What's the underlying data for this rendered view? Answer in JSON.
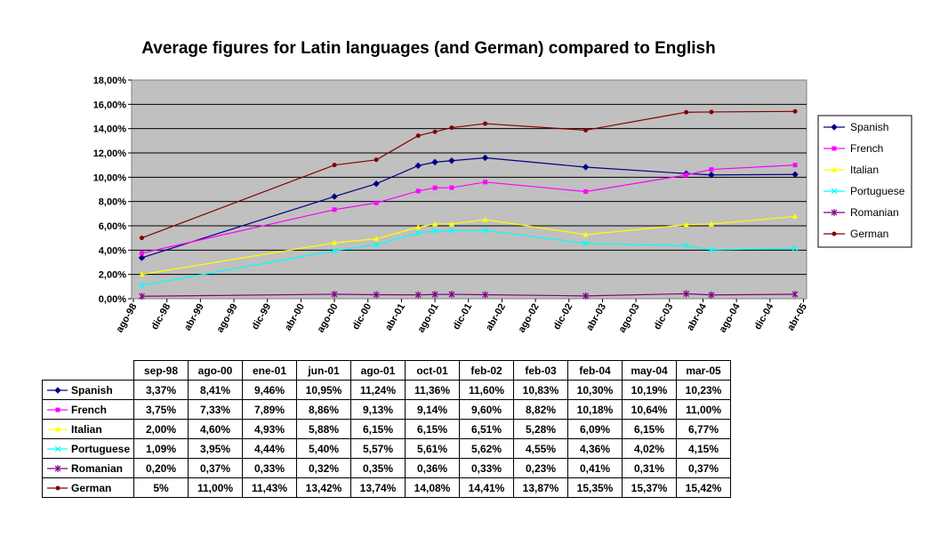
{
  "chart_data": {
    "type": "line",
    "title": "Average figures for Latin languages (and German) compared to English",
    "x_tick_labels": [
      "ago-98",
      "dic-98",
      "abr-99",
      "ago-99",
      "dic-99",
      "abr-00",
      "ago-00",
      "dic-00",
      "abr-01",
      "ago-01",
      "dic-01",
      "abr-02",
      "ago-02",
      "dic-02",
      "abr-03",
      "ago-03",
      "dic-03",
      "abr-04",
      "ago-04",
      "dic-04",
      "abr-05"
    ],
    "categories": [
      "sep-98",
      "ago-00",
      "ene-01",
      "jun-01",
      "ago-01",
      "oct-01",
      "feb-02",
      "feb-03",
      "feb-04",
      "may-04",
      "mar-05"
    ],
    "x_month_index": [
      1,
      24,
      29,
      34,
      36,
      38,
      42,
      54,
      66,
      69,
      79
    ],
    "ylim": [
      0,
      18
    ],
    "y_ticks": [
      0,
      2,
      4,
      6,
      8,
      10,
      12,
      14,
      16,
      18
    ],
    "y_tick_labels": [
      "0,00%",
      "2,00%",
      "4,00%",
      "6,00%",
      "8,00%",
      "10,00%",
      "12,00%",
      "14,00%",
      "16,00%",
      "18,00%"
    ],
    "grid": true,
    "legend_position": "right",
    "series": [
      {
        "name": "Spanish",
        "color": "#000080",
        "marker": "diamond",
        "values": [
          3.37,
          8.41,
          9.46,
          10.95,
          11.24,
          11.36,
          11.6,
          10.83,
          10.3,
          10.19,
          10.23
        ],
        "labels": [
          "3,37%",
          "8,41%",
          "9,46%",
          "10,95%",
          "11,24%",
          "11,36%",
          "11,60%",
          "10,83%",
          "10,30%",
          "10,19%",
          "10,23%"
        ]
      },
      {
        "name": "French",
        "color": "#ff00ff",
        "marker": "square",
        "values": [
          3.75,
          7.33,
          7.89,
          8.86,
          9.13,
          9.14,
          9.6,
          8.82,
          10.18,
          10.64,
          11.0
        ],
        "labels": [
          "3,75%",
          "7,33%",
          "7,89%",
          "8,86%",
          "9,13%",
          "9,14%",
          "9,60%",
          "8,82%",
          "10,18%",
          "10,64%",
          "11,00%"
        ]
      },
      {
        "name": "Italian",
        "color": "#ffff00",
        "marker": "triangle",
        "values": [
          2.0,
          4.6,
          4.93,
          5.88,
          6.15,
          6.15,
          6.51,
          5.28,
          6.09,
          6.15,
          6.77
        ],
        "labels": [
          "2,00%",
          "4,60%",
          "4,93%",
          "5,88%",
          "6,15%",
          "6,15%",
          "6,51%",
          "5,28%",
          "6,09%",
          "6,15%",
          "6,77%"
        ]
      },
      {
        "name": "Portuguese",
        "color": "#00ffff",
        "marker": "x",
        "values": [
          1.09,
          3.95,
          4.44,
          5.4,
          5.57,
          5.61,
          5.62,
          4.55,
          4.36,
          4.02,
          4.15
        ],
        "labels": [
          "1,09%",
          "3,95%",
          "4,44%",
          "5,40%",
          "5,57%",
          "5,61%",
          "5,62%",
          "4,55%",
          "4,36%",
          "4,02%",
          "4,15%"
        ]
      },
      {
        "name": "Romanian",
        "color": "#800080",
        "marker": "star",
        "values": [
          0.2,
          0.37,
          0.33,
          0.32,
          0.35,
          0.36,
          0.33,
          0.23,
          0.41,
          0.31,
          0.37
        ],
        "labels": [
          "0,20%",
          "0,37%",
          "0,33%",
          "0,32%",
          "0,35%",
          "0,36%",
          "0,33%",
          "0,23%",
          "0,41%",
          "0,31%",
          "0,37%"
        ]
      },
      {
        "name": "German",
        "color": "#800000",
        "marker": "circle",
        "values": [
          5,
          11.0,
          11.43,
          13.42,
          13.74,
          14.08,
          14.41,
          13.87,
          15.35,
          15.37,
          15.42
        ],
        "labels": [
          "5%",
          "11,00%",
          "11,43%",
          "13,42%",
          "13,74%",
          "14,08%",
          "14,41%",
          "13,87%",
          "15,35%",
          "15,37%",
          "15,42%"
        ]
      }
    ]
  }
}
